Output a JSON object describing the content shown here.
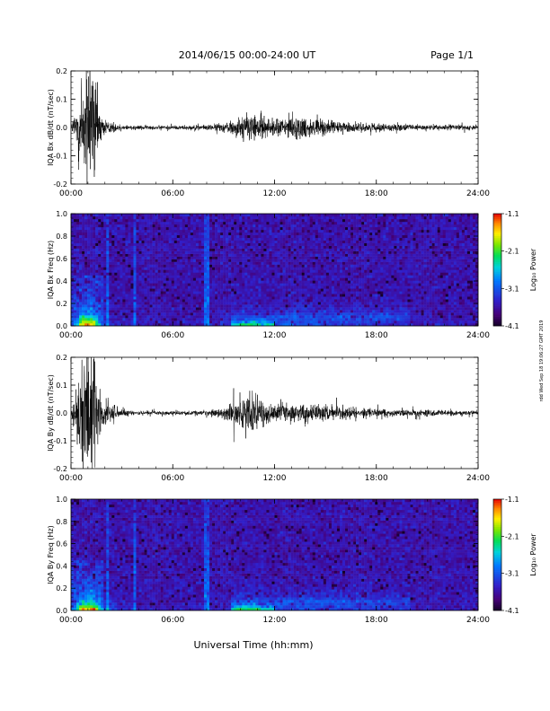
{
  "header": {
    "title": "2014/06/15  00:00-24:00 UT",
    "page": "Page 1/1"
  },
  "side_note": "rdd Wed Sep 18 19:06:27 GMT 2019",
  "x_axis_label": "Universal Time (hh:mm)",
  "chart_data": [
    {
      "type": "line",
      "ylabel": "IQA Bx dB/dt (nT/sec)",
      "xlabel": "",
      "xlim": [
        "00:00",
        "24:00"
      ],
      "x_ticks": [
        "00:00",
        "06:00",
        "12:00",
        "18:00",
        "24:00"
      ],
      "ylim": [
        -0.2,
        0.2
      ],
      "y_ticks": [
        "-0.2",
        "-0.1",
        "0.0",
        "0.1",
        "0.2"
      ],
      "activity_envelope": {
        "description_points_hours": [
          0,
          0.3,
          0.6,
          1.0,
          1.4,
          1.8,
          2.3,
          3,
          4,
          5,
          6,
          7,
          8,
          9,
          9.6,
          10.2,
          10.8,
          11.5,
          12,
          13,
          14,
          15,
          16,
          17,
          18,
          19,
          20,
          21,
          22,
          23,
          24
        ],
        "amplitude": [
          0.01,
          0.12,
          0.3,
          0.35,
          0.3,
          0.06,
          0.03,
          0.015,
          0.012,
          0.011,
          0.011,
          0.012,
          0.014,
          0.025,
          0.04,
          0.07,
          0.08,
          0.05,
          0.045,
          0.06,
          0.055,
          0.04,
          0.03,
          0.025,
          0.02,
          0.017,
          0.016,
          0.015,
          0.015,
          0.014,
          0.013
        ]
      }
    },
    {
      "type": "heatmap",
      "ylabel": "IQA Bx Freq (Hz)",
      "xlim": [
        "00:00",
        "24:00"
      ],
      "x_ticks": [
        "00:00",
        "06:00",
        "12:00",
        "18:00",
        "24:00"
      ],
      "ylim": [
        0.0,
        1.0
      ],
      "y_ticks": [
        "0.0",
        "0.2",
        "0.4",
        "0.6",
        "0.8",
        "1.0"
      ],
      "colorbar": {
        "label": "Log₁₀ Power",
        "range": [
          -4.1,
          -1.1
        ],
        "ticks": [
          "-1.1",
          "-2.1",
          "-3.1",
          "-4.1"
        ]
      }
    },
    {
      "type": "line",
      "ylabel": "IQA By dB/dt (nT/sec)",
      "xlim": [
        "00:00",
        "24:00"
      ],
      "x_ticks": [
        "00:00",
        "06:00",
        "12:00",
        "18:00",
        "24:00"
      ],
      "ylim": [
        -0.2,
        0.2
      ],
      "y_ticks": [
        "-0.2",
        "-0.1",
        "0.0",
        "0.1",
        "0.2"
      ],
      "activity_envelope": {
        "description_points_hours": [
          0,
          0.3,
          0.6,
          1.0,
          1.4,
          1.8,
          2.3,
          3,
          4,
          5,
          6,
          7,
          8,
          9,
          9.6,
          10.2,
          10.8,
          11.5,
          12,
          13,
          14,
          15,
          16,
          17,
          18,
          19,
          20,
          21,
          22,
          23,
          24
        ],
        "amplitude": [
          0.01,
          0.15,
          0.3,
          0.35,
          0.32,
          0.1,
          0.06,
          0.02,
          0.012,
          0.011,
          0.011,
          0.012,
          0.014,
          0.03,
          0.06,
          0.09,
          0.1,
          0.06,
          0.05,
          0.04,
          0.045,
          0.04,
          0.035,
          0.03,
          0.025,
          0.02,
          0.018,
          0.016,
          0.015,
          0.014,
          0.013
        ]
      }
    },
    {
      "type": "heatmap",
      "ylabel": "IQA By Freq (Hz)",
      "xlim": [
        "00:00",
        "24:00"
      ],
      "x_ticks": [
        "00:00",
        "06:00",
        "12:00",
        "18:00",
        "24:00"
      ],
      "ylim": [
        0.0,
        1.0
      ],
      "y_ticks": [
        "0.0",
        "0.2",
        "0.4",
        "0.6",
        "0.8",
        "1.0"
      ],
      "colorbar": {
        "label": "Log₁₀ Power",
        "range": [
          -4.1,
          -1.1
        ],
        "ticks": [
          "-1.1",
          "-2.1",
          "-3.1",
          "-4.1"
        ]
      }
    }
  ]
}
